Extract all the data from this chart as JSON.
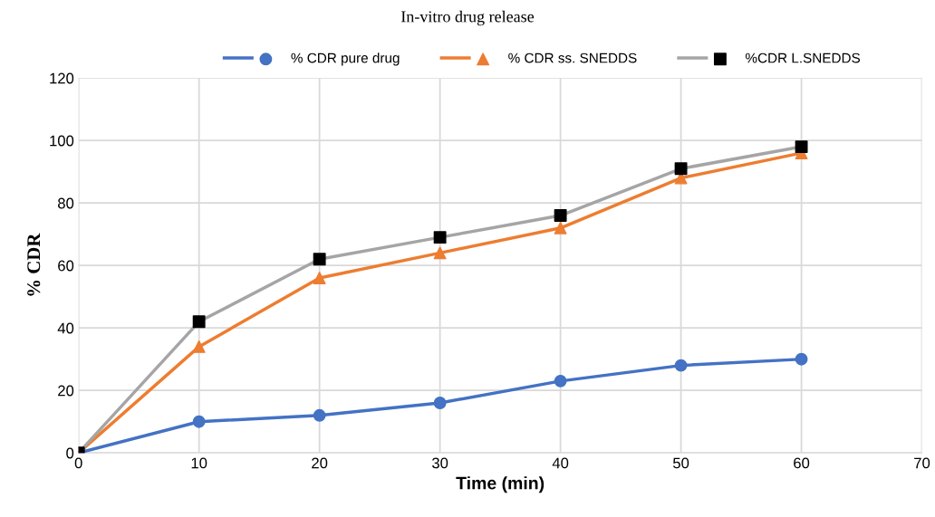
{
  "chart_data": {
    "type": "line",
    "title": "In-vitro drug release",
    "xlabel": "Time (min)",
    "ylabel": "% CDR",
    "x": [
      0,
      10,
      20,
      30,
      40,
      50,
      60
    ],
    "series": [
      {
        "name": "% CDR pure drug",
        "color": "#4472c4",
        "marker": "circle",
        "values": [
          0,
          10,
          12,
          16,
          23,
          28,
          30
        ]
      },
      {
        "name": "% CDR ss. SNEDDS",
        "color": "#ed7d31",
        "marker": "triangle",
        "values": [
          0,
          34,
          56,
          64,
          72,
          88,
          96
        ]
      },
      {
        "name": "%CDR L.SNEDDS",
        "color": "#a5a5a5",
        "colors": [
          "#000000",
          "#000000",
          "#000000",
          "#000000",
          "#000000",
          "#000000",
          "#000000"
        ],
        "marker": "square",
        "values": [
          0,
          42,
          62,
          69,
          76,
          91,
          98
        ]
      }
    ],
    "xlim": [
      0,
      70
    ],
    "xticks": [
      0,
      10,
      20,
      30,
      40,
      50,
      60,
      70
    ],
    "ylim": [
      0,
      120
    ],
    "yticks": [
      0,
      20,
      40,
      60,
      80,
      100,
      120
    ],
    "grid": true,
    "legend": "top",
    "line_style": "solid"
  }
}
